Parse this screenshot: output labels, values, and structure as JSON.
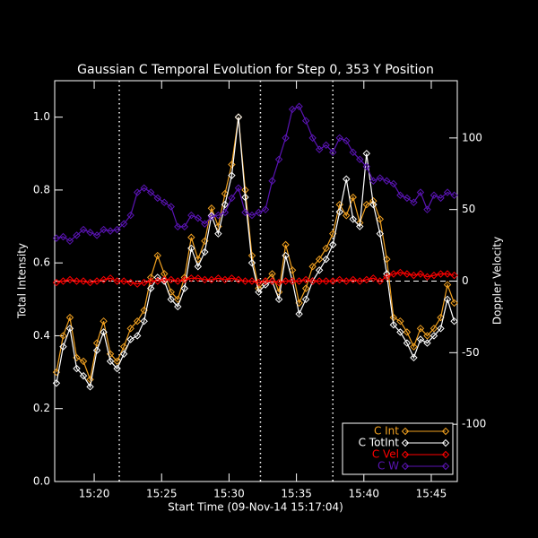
{
  "chart_data": {
    "type": "line",
    "title": "Gaussian C Temporal Evolution for Step 0, 353 Y Position",
    "x_label": "Start Time (09-Nov-14 15:17:04)",
    "y_label": "Total Intensity",
    "y2_label": "Doppler Velocity",
    "xlim": [
      17.07,
      46.93
    ],
    "xticks": [
      {
        "value": 20,
        "label": "15:20"
      },
      {
        "value": 25,
        "label": "15:25"
      },
      {
        "value": 30,
        "label": "15:30"
      },
      {
        "value": 35,
        "label": "15:35"
      },
      {
        "value": 40,
        "label": "15:40"
      },
      {
        "value": 45,
        "label": "15:45"
      }
    ],
    "ylim": [
      0,
      1.1
    ],
    "yticks": [
      {
        "value": 0,
        "label": "0.0"
      },
      0.2,
      0.4,
      0.6,
      0.8,
      {
        "value": 1,
        "label": "1.0"
      }
    ],
    "y2lim": [
      -140,
      140
    ],
    "y2ticks": [
      -100,
      -50,
      0,
      50,
      100
    ],
    "vlines": [
      21.86,
      32.33,
      37.7
    ],
    "y2_reference_line": 0,
    "legend": "bottom-right",
    "x": [
      17.2,
      17.7,
      18.2,
      18.7,
      19.2,
      19.7,
      20.2,
      20.7,
      21.2,
      21.7,
      22.2,
      22.7,
      23.2,
      23.7,
      24.2,
      24.7,
      25.2,
      25.7,
      26.2,
      26.7,
      27.2,
      27.7,
      28.2,
      28.7,
      29.2,
      29.7,
      30.2,
      30.7,
      31.2,
      31.7,
      32.2,
      32.7,
      33.2,
      33.7,
      34.2,
      34.7,
      35.2,
      35.7,
      36.2,
      36.7,
      37.2,
      37.7,
      38.2,
      38.7,
      39.2,
      39.7,
      40.2,
      40.7,
      41.2,
      41.7,
      42.2,
      42.7,
      43.2,
      43.7,
      44.2,
      44.7,
      45.2,
      45.7,
      46.2,
      46.7
    ],
    "series": [
      {
        "name": "C Int",
        "color": "#f0a020",
        "axis": "y",
        "values": [
          0.3,
          0.4,
          0.45,
          0.34,
          0.33,
          0.28,
          0.38,
          0.44,
          0.35,
          0.33,
          0.37,
          0.42,
          0.44,
          0.47,
          0.56,
          0.62,
          0.57,
          0.52,
          0.5,
          0.56,
          0.67,
          0.61,
          0.66,
          0.75,
          0.7,
          0.79,
          0.87,
          1.0,
          0.8,
          0.62,
          0.53,
          0.55,
          0.57,
          0.52,
          0.65,
          0.58,
          0.49,
          0.53,
          0.59,
          0.61,
          0.64,
          0.68,
          0.76,
          0.73,
          0.78,
          0.71,
          0.76,
          0.77,
          0.72,
          0.61,
          0.45,
          0.44,
          0.41,
          0.37,
          0.42,
          0.4,
          0.42,
          0.45,
          0.54,
          0.49
        ]
      },
      {
        "name": "C TotInt",
        "color": "#ffffff",
        "axis": "y",
        "values": [
          0.27,
          0.37,
          0.42,
          0.31,
          0.29,
          0.26,
          0.36,
          0.41,
          0.33,
          0.31,
          0.35,
          0.39,
          0.4,
          0.44,
          0.53,
          0.56,
          0.55,
          0.5,
          0.48,
          0.53,
          0.64,
          0.59,
          0.63,
          0.73,
          0.68,
          0.76,
          0.84,
          1.0,
          0.78,
          0.6,
          0.52,
          0.54,
          0.55,
          0.5,
          0.62,
          0.55,
          0.46,
          0.5,
          0.55,
          0.58,
          0.61,
          0.65,
          0.74,
          0.83,
          0.72,
          0.7,
          0.9,
          0.76,
          0.68,
          0.57,
          0.43,
          0.41,
          0.38,
          0.34,
          0.39,
          0.38,
          0.4,
          0.42,
          0.5,
          0.44
        ]
      },
      {
        "name": "C Vel",
        "color": "#ff0000",
        "axis": "y2",
        "values": [
          -1,
          0,
          1,
          0,
          0,
          -1,
          0,
          1,
          2,
          0,
          0,
          -1,
          -2,
          -1,
          0,
          0,
          1,
          1,
          0,
          1,
          2,
          2,
          1,
          1,
          2,
          1,
          2,
          1,
          0,
          0,
          -1,
          0,
          0,
          -1,
          0,
          0,
          0,
          1,
          0,
          0,
          0,
          0,
          1,
          0,
          1,
          0,
          1,
          2,
          0,
          3,
          5,
          6,
          5,
          4,
          5,
          3,
          4,
          5,
          5,
          4
        ]
      },
      {
        "name": "C W",
        "color": "#5a14b4",
        "axis": "y2",
        "values": [
          30,
          31,
          28,
          32,
          36,
          34,
          32,
          36,
          35,
          36,
          40,
          46,
          62,
          65,
          62,
          58,
          55,
          52,
          38,
          38,
          46,
          44,
          40,
          45,
          46,
          48,
          58,
          65,
          48,
          46,
          48,
          50,
          70,
          85,
          100,
          120,
          122,
          112,
          100,
          92,
          95,
          90,
          100,
          98,
          90,
          85,
          80,
          70,
          72,
          70,
          68,
          60,
          58,
          55,
          62,
          50,
          60,
          58,
          62,
          60
        ]
      }
    ]
  }
}
